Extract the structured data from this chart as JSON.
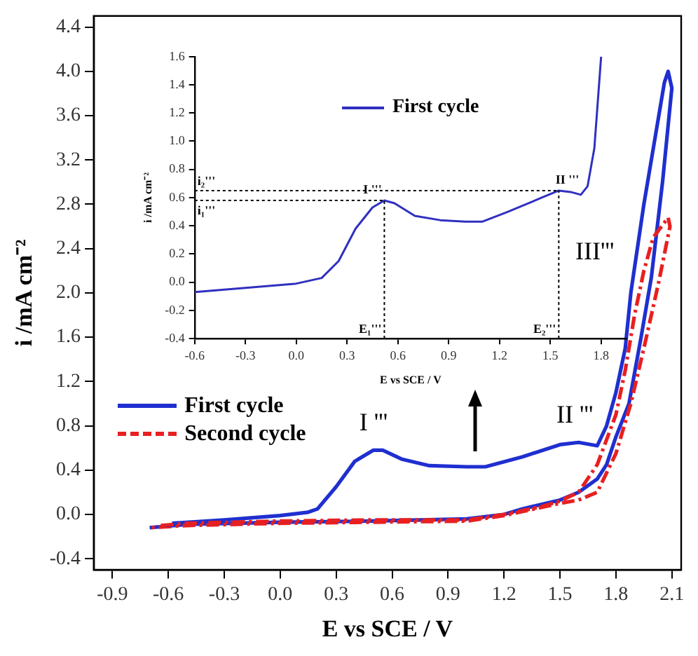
{
  "chart_data": [
    {
      "type": "line",
      "xlabel": "E vs SCE / V",
      "ylabel": "i /mA cm⁻²",
      "xlim": [
        -1.0,
        2.15
      ],
      "ylim": [
        -0.5,
        4.5
      ],
      "xticks": [
        -0.9,
        -0.6,
        -0.3,
        {
          "value": 0,
          "label": "0.0"
        },
        0.3,
        0.6,
        0.9,
        1.2,
        1.5,
        1.8,
        2.1
      ],
      "yticks": [
        -0.4,
        {
          "value": 0,
          "label": "0.0"
        },
        0.4,
        0.8,
        1.2,
        1.6,
        {
          "value": 2,
          "label": "2.0"
        },
        2.4,
        2.8,
        3.2,
        3.6,
        {
          "value": 4,
          "label": "4.0"
        },
        4.4
      ],
      "legend": "bottom left",
      "grid": false,
      "marker": "none",
      "annotations": [
        {
          "text": "I '''",
          "x": 0.5,
          "y": 0.58
        },
        {
          "text": "II '''",
          "x": 1.58,
          "y": 0.65
        },
        "III'''"
      ],
      "series": [
        {
          "name": "First cycle",
          "color": "#1f2fd0",
          "line_style": "solid",
          "x": [
            -0.58,
            -0.3,
            0,
            0.15,
            0.2,
            0.3,
            0.4,
            0.5,
            0.55,
            0.65,
            0.8,
            1.0,
            1.1,
            1.3,
            1.5,
            1.6,
            1.7,
            1.75,
            1.8,
            1.85,
            1.88,
            1.95,
            2.01,
            2.06,
            2.08,
            2.1,
            2.05,
            1.99,
            1.935,
            1.87,
            1.8,
            1.75,
            1.7,
            1.6,
            1.5,
            1.3,
            1.2,
            1.0,
            0.5,
            0,
            -0.5,
            -0.7
          ],
          "values": [
            -0.08,
            -0.05,
            -0.01,
            0.02,
            0.05,
            0.25,
            0.48,
            0.58,
            0.58,
            0.5,
            0.44,
            0.43,
            0.43,
            0.52,
            0.63,
            0.65,
            0.62,
            0.8,
            1.1,
            1.5,
            2.0,
            2.8,
            3.4,
            3.9,
            4.0,
            3.85,
            3.0,
            2.14,
            1.6,
            1.0,
            0.7,
            0.45,
            0.32,
            0.2,
            0.13,
            0.05,
            0.0,
            -0.04,
            -0.06,
            -0.07,
            -0.09,
            -0.12
          ]
        },
        {
          "name": "Second cycle",
          "color": "#e82020",
          "line_style": "dashed",
          "x": [
            -0.64,
            -0.5,
            0,
            0.5,
            1.0,
            1.2,
            1.4,
            1.5,
            1.6,
            1.7,
            1.8,
            1.85,
            1.9,
            1.95,
            2.0,
            2.08,
            2.09,
            2.03,
            1.95,
            1.88,
            1.8,
            1.7,
            1.6,
            1.5,
            1.2,
            1.0,
            0.5,
            0,
            -0.5,
            -0.7
          ],
          "values": [
            -0.1,
            -0.08,
            -0.06,
            -0.05,
            -0.05,
            0.0,
            0.07,
            0.12,
            0.2,
            0.45,
            0.9,
            1.3,
            1.8,
            2.2,
            2.5,
            2.68,
            2.6,
            2.1,
            1.5,
            1.0,
            0.55,
            0.2,
            0.13,
            0.1,
            -0.01,
            -0.06,
            -0.07,
            -0.08,
            -0.1,
            -0.12
          ]
        }
      ]
    },
    {
      "type": "line",
      "xlabel": "E vs SCE / V",
      "ylabel": "i /mA cm⁻²",
      "xlim": [
        -0.6,
        1.95
      ],
      "ylim": [
        -0.4,
        1.6
      ],
      "xticks": [
        -0.6,
        -0.3,
        {
          "value": 0,
          "label": "0.0"
        },
        0.3,
        0.6,
        0.9,
        1.2,
        1.5,
        1.8
      ],
      "yticks": [
        -0.4,
        -0.2,
        {
          "value": 0,
          "label": "0.0"
        },
        0.2,
        0.4,
        0.6,
        0.8,
        {
          "value": 1,
          "label": "1.0"
        },
        1.2,
        1.4,
        1.6
      ],
      "legend": "top",
      "grid": false,
      "marker": "none",
      "annotations": [
        {
          "text": "I '''",
          "x": 0.45,
          "y": 0.58
        },
        {
          "text": "II '''",
          "x": 1.6,
          "y": 0.65
        }
      ],
      "ref_lines": [
        {
          "axis": "x",
          "value": 0.52,
          "label": "E₁'''",
          "line_style": "dotted"
        },
        {
          "axis": "x",
          "value": 1.55,
          "label": "E₂'''",
          "line_style": "dotted"
        },
        {
          "axis": "y",
          "value": 0.58,
          "label": "i₁'''",
          "line_style": "dotted"
        },
        {
          "axis": "y",
          "value": 0.65,
          "label": "i₂'''",
          "line_style": "dotted"
        }
      ],
      "series": [
        {
          "name": "First cycle",
          "color": "#3030c0",
          "line_style": "solid",
          "x": [
            -0.6,
            -0.3,
            0,
            0.15,
            0.25,
            0.35,
            0.45,
            0.52,
            0.58,
            0.7,
            0.85,
            1.0,
            1.1,
            1.25,
            1.45,
            1.55,
            1.62,
            1.68,
            1.72,
            1.76,
            1.8
          ],
          "values": [
            -0.07,
            -0.04,
            -0.01,
            0.03,
            0.15,
            0.38,
            0.53,
            0.58,
            0.56,
            0.47,
            0.44,
            0.43,
            0.43,
            0.5,
            0.6,
            0.65,
            0.64,
            0.62,
            0.68,
            0.95,
            1.6
          ]
        }
      ]
    }
  ]
}
